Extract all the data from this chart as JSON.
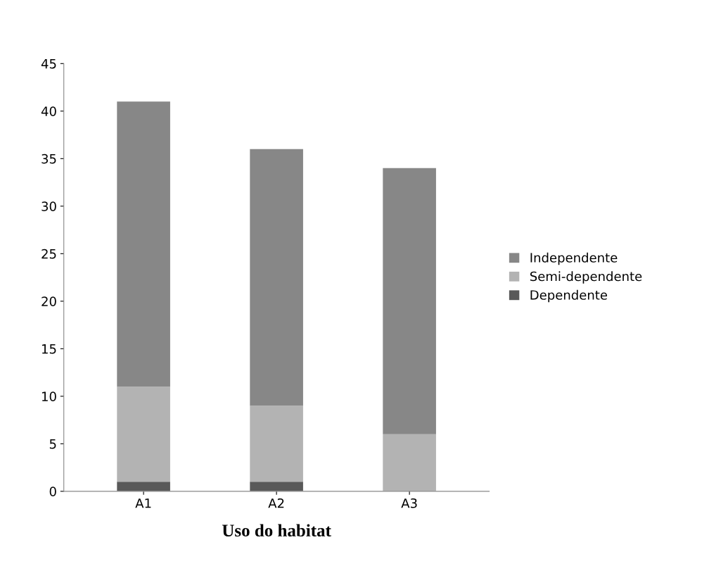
{
  "chart_data": {
    "type": "bar",
    "stacked": true,
    "xlabel": "Uso do habitat",
    "categories": [
      "A1",
      "A2",
      "A3"
    ],
    "series": [
      {
        "name": "Dependente",
        "color": "#595959",
        "values": [
          1,
          1,
          0
        ]
      },
      {
        "name": "Semi-dependente",
        "color": "#b3b3b3",
        "values": [
          10,
          8,
          6
        ]
      },
      {
        "name": "Independente",
        "color": "#878787",
        "values": [
          30,
          27,
          28
        ]
      }
    ],
    "ylim": [
      0,
      45
    ],
    "yticks": [
      0,
      5,
      10,
      15,
      20,
      25,
      30,
      35,
      40,
      45
    ],
    "grid": false,
    "legend": "right"
  }
}
